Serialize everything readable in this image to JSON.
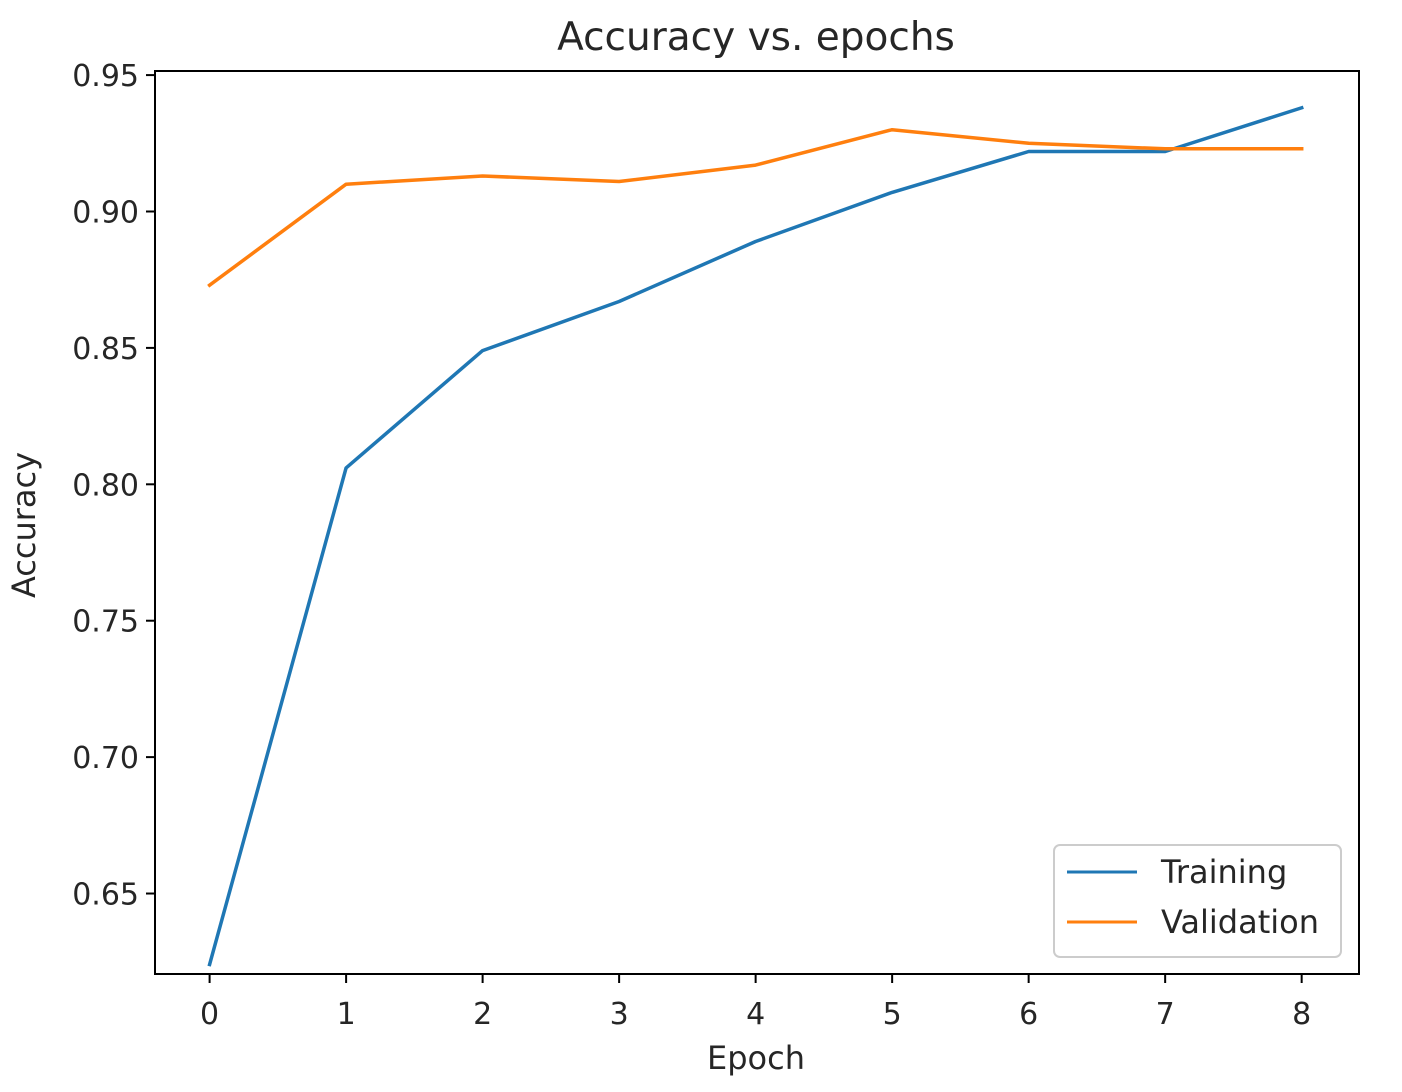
{
  "chart_data": {
    "type": "line",
    "title": "Accuracy vs. epochs",
    "xlabel": "Epoch",
    "ylabel": "Accuracy",
    "x": [
      0,
      1,
      2,
      3,
      4,
      5,
      6,
      7,
      8
    ],
    "xticks": [
      "0",
      "1",
      "2",
      "3",
      "4",
      "5",
      "6",
      "7",
      "8"
    ],
    "yticks": [
      "0.65",
      "0.70",
      "0.75",
      "0.80",
      "0.85",
      "0.90",
      "0.95"
    ],
    "xlim": [
      -0.4,
      8.42
    ],
    "ylim": [
      0.6205,
      0.9515
    ],
    "grid": false,
    "legend_position": "lower right",
    "series": [
      {
        "name": "Training",
        "color": "#1f77b4",
        "values": [
          0.624,
          0.806,
          0.849,
          0.867,
          0.889,
          0.907,
          0.922,
          0.922,
          0.938
        ]
      },
      {
        "name": "Validation",
        "color": "#ff7f0e",
        "values": [
          0.873,
          0.91,
          0.913,
          0.911,
          0.917,
          0.93,
          0.925,
          0.923,
          0.923
        ]
      }
    ]
  }
}
